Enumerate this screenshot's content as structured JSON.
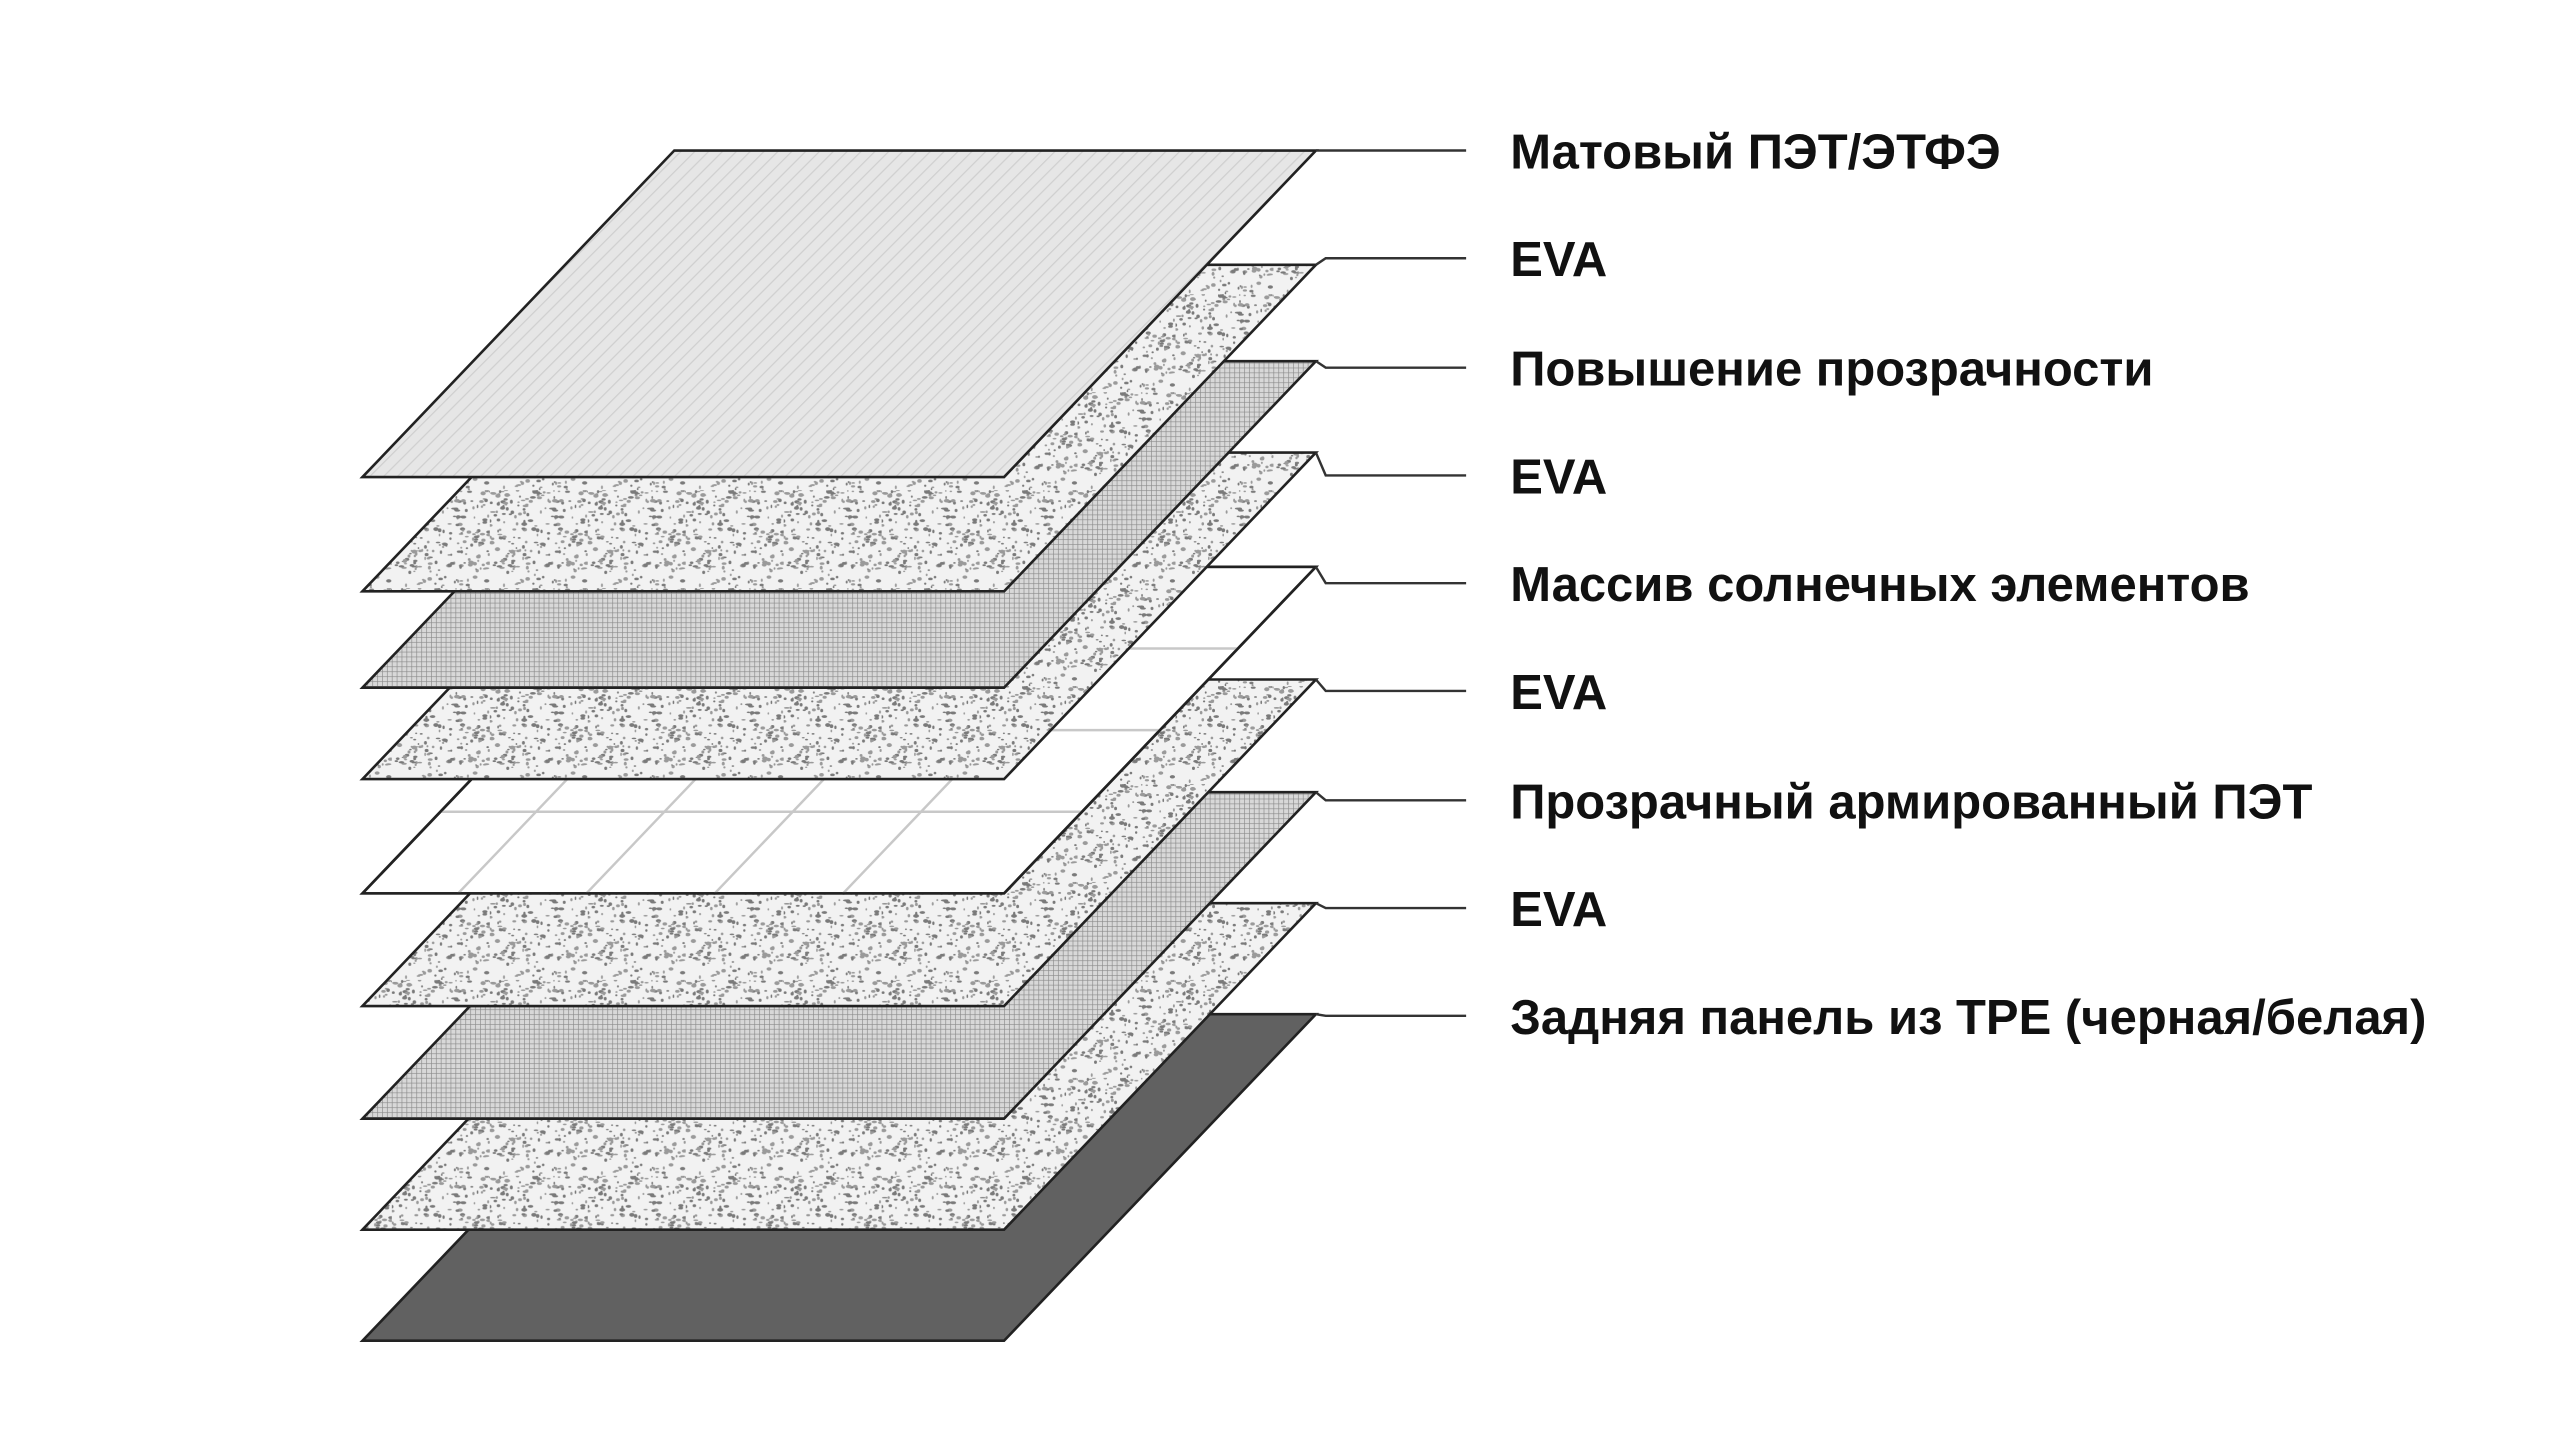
{
  "layers": [
    {
      "label": "Матовый ПЭТ/ЭТФЭ",
      "fill": "hatch-light"
    },
    {
      "label": "EVA",
      "fill": "speckle"
    },
    {
      "label": "Повышение прозрачности",
      "fill": "dense-grid"
    },
    {
      "label": "EVA",
      "fill": "speckle"
    },
    {
      "label": "Массив солнечных элементов",
      "fill": "cell-grid"
    },
    {
      "label": "EVA",
      "fill": "speckle"
    },
    {
      "label": "Прозрачный армированный ПЭТ",
      "fill": "dense-grid"
    },
    {
      "label": "EVA",
      "fill": "speckle"
    },
    {
      "label": "Задняя панель из TPE (черная/белая)",
      "fill": "solid-dark"
    }
  ],
  "colors": {
    "outline": "#222222",
    "dark_backsheet": "#616161",
    "light_film": "#e4e4e4",
    "speckle_base": "#f2f2f2",
    "speckle_dot": "#7a7a7a"
  }
}
